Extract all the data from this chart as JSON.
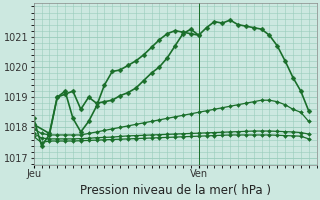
{
  "background_color": "#cce8e0",
  "grid_color": "#99ccbb",
  "line_color": "#1a6e2a",
  "title": "Pression niveau de la mer( hPa )",
  "xlabel_jeu": "Jeu",
  "xlabel_ven": "Ven",
  "ylim": [
    1016.75,
    1022.1
  ],
  "yticks": [
    1017,
    1018,
    1019,
    1020,
    1021
  ],
  "xlim": [
    0,
    36
  ],
  "x_jeu": 0,
  "x_ven": 21,
  "vline_x": 21,
  "series": [
    {
      "x": [
        0,
        1,
        2,
        3,
        4,
        5,
        6,
        7,
        8,
        9,
        10,
        11,
        12,
        13,
        14,
        15,
        16,
        17,
        18,
        19,
        20,
        21,
        22,
        23,
        24,
        25,
        26,
        27,
        28,
        29,
        30,
        31,
        32,
        33,
        34,
        35
      ],
      "y": [
        1018.3,
        1017.4,
        1017.75,
        1019.0,
        1019.1,
        1019.2,
        1018.6,
        1019.0,
        1018.8,
        1018.85,
        1018.9,
        1019.05,
        1019.15,
        1019.3,
        1019.55,
        1019.8,
        1020.0,
        1020.3,
        1020.7,
        1021.1,
        1021.25,
        1021.05,
        1021.3,
        1021.5,
        1021.45,
        1021.55,
        1021.4,
        1021.35,
        1021.3,
        1021.25,
        1021.05,
        1020.7,
        1020.2,
        1019.65,
        1019.2,
        1018.55
      ],
      "marker": "D",
      "ms": 2.5,
      "lw": 1.2
    },
    {
      "x": [
        0,
        2,
        3,
        4,
        5,
        6,
        7,
        8,
        9,
        10,
        11,
        12,
        13,
        14,
        15,
        16,
        17,
        18,
        19,
        20,
        21
      ],
      "y": [
        1018.1,
        1017.8,
        1019.0,
        1019.2,
        1018.3,
        1017.85,
        1018.2,
        1018.7,
        1019.4,
        1019.85,
        1019.9,
        1020.05,
        1020.2,
        1020.4,
        1020.65,
        1020.9,
        1021.1,
        1021.2,
        1021.15,
        1021.1,
        1021.05
      ],
      "marker": "D",
      "ms": 2.5,
      "lw": 1.2
    },
    {
      "x": [
        0,
        1,
        2,
        3,
        4,
        5,
        6,
        7,
        8,
        9,
        10,
        11,
        12,
        13,
        14,
        15,
        16,
        17,
        18,
        19,
        20,
        21,
        22,
        23,
        24,
        25,
        26,
        27,
        28,
        29,
        30,
        31,
        32,
        33,
        34,
        35
      ],
      "y": [
        1017.95,
        1017.8,
        1017.75,
        1017.75,
        1017.75,
        1017.75,
        1017.75,
        1017.8,
        1017.85,
        1017.9,
        1017.95,
        1018.0,
        1018.05,
        1018.1,
        1018.15,
        1018.2,
        1018.25,
        1018.3,
        1018.35,
        1018.4,
        1018.45,
        1018.5,
        1018.55,
        1018.6,
        1018.65,
        1018.7,
        1018.75,
        1018.8,
        1018.85,
        1018.9,
        1018.9,
        1018.85,
        1018.75,
        1018.6,
        1018.5,
        1018.2
      ],
      "marker": "D",
      "ms": 2.0,
      "lw": 0.9
    },
    {
      "x": [
        0,
        1,
        2,
        3,
        4,
        5,
        6,
        7,
        8,
        9,
        10,
        11,
        12,
        13,
        14,
        15,
        16,
        17,
        18,
        19,
        20,
        21,
        22,
        23,
        24,
        25,
        26,
        27,
        28,
        29,
        30,
        31,
        32,
        33,
        34,
        35
      ],
      "y": [
        1017.8,
        1017.65,
        1017.62,
        1017.62,
        1017.62,
        1017.62,
        1017.63,
        1017.64,
        1017.66,
        1017.67,
        1017.68,
        1017.7,
        1017.72,
        1017.73,
        1017.74,
        1017.75,
        1017.76,
        1017.77,
        1017.78,
        1017.79,
        1017.8,
        1017.81,
        1017.82,
        1017.83,
        1017.84,
        1017.85,
        1017.86,
        1017.87,
        1017.88,
        1017.88,
        1017.88,
        1017.87,
        1017.86,
        1017.85,
        1017.83,
        1017.78
      ],
      "marker": "D",
      "ms": 2.0,
      "lw": 0.9
    },
    {
      "x": [
        0,
        1,
        2,
        3,
        4,
        5,
        6,
        7,
        8,
        9,
        10,
        11,
        12,
        13,
        14,
        15,
        16,
        17,
        18,
        19,
        20,
        21,
        22,
        23,
        24,
        25,
        26,
        27,
        28,
        29,
        30,
        31,
        32,
        33,
        34,
        35
      ],
      "y": [
        1017.7,
        1017.5,
        1017.55,
        1017.55,
        1017.55,
        1017.55,
        1017.56,
        1017.57,
        1017.58,
        1017.59,
        1017.6,
        1017.61,
        1017.62,
        1017.63,
        1017.64,
        1017.65,
        1017.66,
        1017.67,
        1017.68,
        1017.69,
        1017.7,
        1017.71,
        1017.72,
        1017.73,
        1017.74,
        1017.75,
        1017.75,
        1017.75,
        1017.75,
        1017.75,
        1017.75,
        1017.74,
        1017.73,
        1017.72,
        1017.71,
        1017.62
      ],
      "marker": "D",
      "ms": 2.0,
      "lw": 0.9
    }
  ],
  "title_fontsize": 8.5,
  "tick_fontsize": 7
}
